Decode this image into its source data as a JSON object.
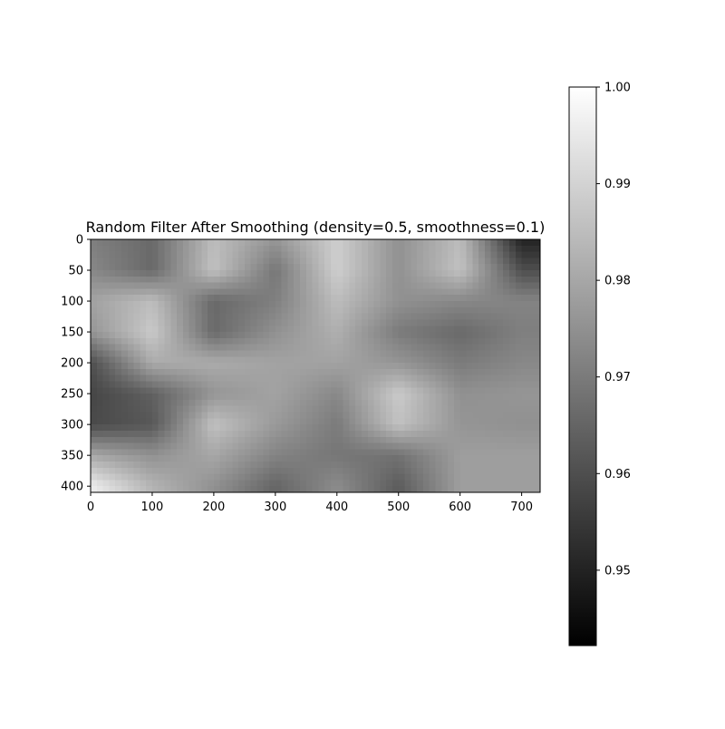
{
  "chart_data": {
    "type": "heatmap",
    "title": "Random Filter After Smoothing (density=0.5, smoothness=0.1)",
    "colormap": "gray",
    "x_ticks": [
      0,
      100,
      200,
      300,
      400,
      500,
      600,
      700
    ],
    "y_ticks": [
      0,
      50,
      100,
      150,
      200,
      250,
      300,
      350,
      400
    ],
    "xlim": [
      0,
      730
    ],
    "ylim": [
      410,
      0
    ],
    "colorbar": {
      "min": 0.9422,
      "max": 1.0,
      "ticks": [
        "0.95",
        "0.96",
        "0.97",
        "0.98",
        "0.99",
        "1.00"
      ]
    },
    "approx_values": {
      "rows_y": [
        0,
        50,
        100,
        150,
        200,
        250,
        300,
        350,
        400
      ],
      "cols_x": [
        0,
        100,
        200,
        300,
        400,
        500,
        600,
        700
      ],
      "grid": [
        [
          0.971,
          0.966,
          0.985,
          0.976,
          0.989,
          0.975,
          0.985,
          0.95
        ],
        [
          0.973,
          0.966,
          0.986,
          0.969,
          0.989,
          0.975,
          0.986,
          0.96
        ],
        [
          0.979,
          0.985,
          0.966,
          0.971,
          0.985,
          0.975,
          0.973,
          0.972
        ],
        [
          0.976,
          0.988,
          0.966,
          0.975,
          0.982,
          0.97,
          0.966,
          0.971
        ],
        [
          0.96,
          0.981,
          0.981,
          0.979,
          0.979,
          0.976,
          0.97,
          0.973
        ],
        [
          0.958,
          0.964,
          0.976,
          0.979,
          0.973,
          0.988,
          0.975,
          0.976
        ],
        [
          0.959,
          0.962,
          0.986,
          0.977,
          0.97,
          0.986,
          0.976,
          0.975
        ],
        [
          0.98,
          0.975,
          0.98,
          0.972,
          0.969,
          0.968,
          0.978,
          0.978
        ],
        [
          0.996,
          0.983,
          0.975,
          0.965,
          0.974,
          0.963,
          0.978,
          0.978
        ]
      ]
    }
  }
}
